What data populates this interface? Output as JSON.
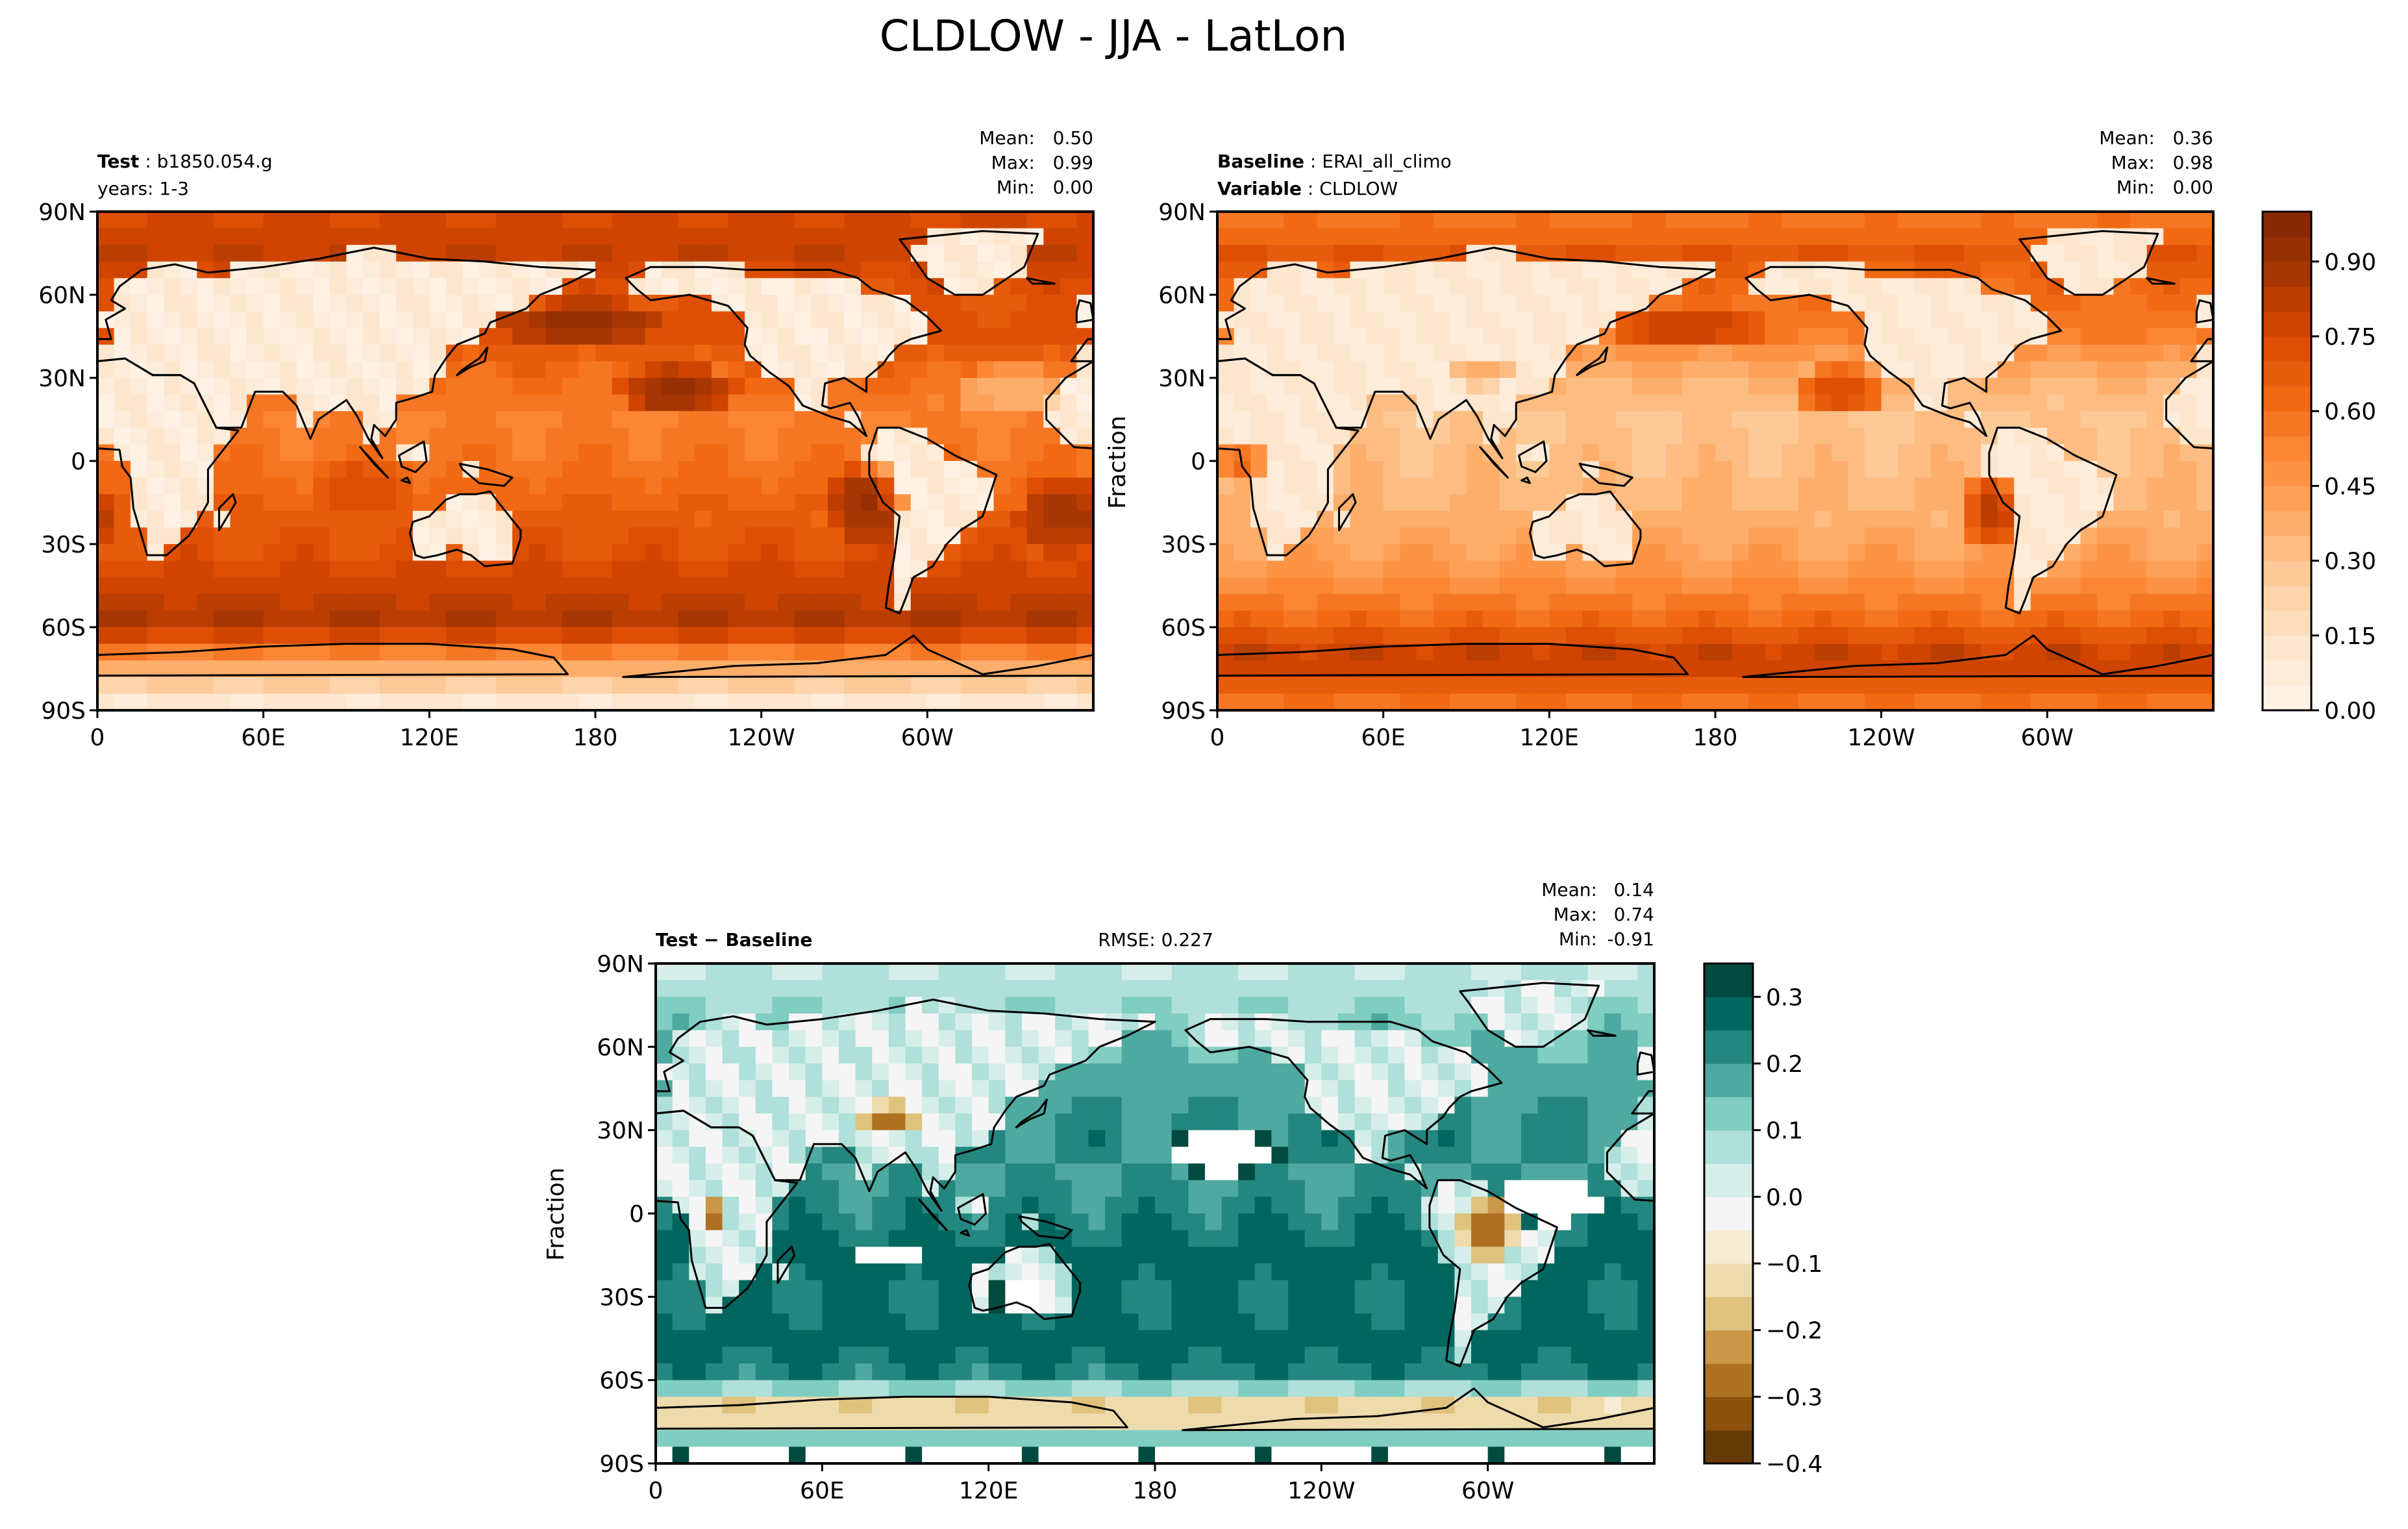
{
  "figure": {
    "title": "CLDLOW - JJA - LatLon"
  },
  "chart_data": [
    {
      "type": "heatmap",
      "panel": "test",
      "label_bold": "Test",
      "label_value": "b1850.054.g",
      "label_line2": "years: 1-3",
      "stats": {
        "mean": "0.50",
        "max": "0.99",
        "min": "0.00"
      },
      "stats_labels": {
        "mean": "Mean:",
        "max": "Max:",
        "min": "Min:"
      },
      "ylabel": "",
      "xticks": [
        "0",
        "60E",
        "120E",
        "180",
        "120W",
        "60W"
      ],
      "yticks": [
        "90N",
        "60N",
        "30N",
        "0",
        "30S",
        "60S",
        "90S"
      ],
      "xlim": [
        0,
        360
      ],
      "ylim": [
        -90,
        90
      ],
      "colormap": "Oranges",
      "field": {
        "zonal_mean_ocean": [
          {
            "lat": 90,
            "value": 0.75
          },
          {
            "lat": 75,
            "value": 0.8
          },
          {
            "lat": 60,
            "value": 0.7
          },
          {
            "lat": 45,
            "value": 0.72
          },
          {
            "lat": 30,
            "value": 0.6
          },
          {
            "lat": 15,
            "value": 0.55
          },
          {
            "lat": 0,
            "value": 0.58
          },
          {
            "lat": -15,
            "value": 0.65
          },
          {
            "lat": -30,
            "value": 0.7
          },
          {
            "lat": -45,
            "value": 0.78
          },
          {
            "lat": -60,
            "value": 0.85
          },
          {
            "lat": -72,
            "value": 0.45
          },
          {
            "lat": -90,
            "value": 0.05
          }
        ],
        "land_value": 0.08,
        "anomalies": [
          {
            "lon": 210,
            "lat": 25,
            "rx": 22,
            "ry": 10,
            "value": 0.92
          },
          {
            "lon": 175,
            "lat": 50,
            "rx": 30,
            "ry": 8,
            "value": 0.92
          },
          {
            "lon": 278,
            "lat": -15,
            "rx": 14,
            "ry": 14,
            "value": 0.92
          },
          {
            "lon": 350,
            "lat": -20,
            "rx": 18,
            "ry": 14,
            "value": 0.88
          },
          {
            "lon": 95,
            "lat": -10,
            "rx": 20,
            "ry": 12,
            "value": 0.72
          },
          {
            "lon": 330,
            "lat": 25,
            "rx": 20,
            "ry": 10,
            "value": 0.35
          }
        ]
      }
    },
    {
      "type": "heatmap",
      "panel": "baseline",
      "label_bold": "Baseline",
      "label_value": "ERAI_all_climo",
      "label2_bold": "Variable",
      "label2_value": "CLDLOW",
      "stats": {
        "mean": "0.36",
        "max": "0.98",
        "min": "0.00"
      },
      "stats_labels": {
        "mean": "Mean:",
        "max": "Max:",
        "min": "Min:"
      },
      "ylabel": "Fraction",
      "xticks": [
        "0",
        "60E",
        "120E",
        "180",
        "120W",
        "60W"
      ],
      "yticks": [
        "90N",
        "60N",
        "30N",
        "0",
        "30S",
        "60S",
        "90S"
      ],
      "xlim": [
        0,
        360
      ],
      "ylim": [
        -90,
        90
      ],
      "colormap": "Oranges",
      "colorbar": {
        "ticks": [
          "0.00",
          "0.15",
          "0.30",
          "0.45",
          "0.60",
          "0.75",
          "0.90"
        ],
        "tick_values": [
          0,
          0.15,
          0.3,
          0.45,
          0.6,
          0.75,
          0.9
        ],
        "range": [
          0,
          1
        ],
        "levels": 20
      },
      "field": {
        "zonal_mean_ocean": [
          {
            "lat": 90,
            "value": 0.55
          },
          {
            "lat": 75,
            "value": 0.7
          },
          {
            "lat": 60,
            "value": 0.6
          },
          {
            "lat": 45,
            "value": 0.55
          },
          {
            "lat": 30,
            "value": 0.35
          },
          {
            "lat": 15,
            "value": 0.3
          },
          {
            "lat": 0,
            "value": 0.32
          },
          {
            "lat": -15,
            "value": 0.35
          },
          {
            "lat": -30,
            "value": 0.4
          },
          {
            "lat": -45,
            "value": 0.5
          },
          {
            "lat": -60,
            "value": 0.65
          },
          {
            "lat": -72,
            "value": 0.82
          },
          {
            "lat": -90,
            "value": 0.55
          }
        ],
        "land_value": 0.1,
        "anomalies": [
          {
            "lon": 225,
            "lat": 25,
            "rx": 18,
            "ry": 10,
            "value": 0.75
          },
          {
            "lon": 170,
            "lat": 48,
            "rx": 28,
            "ry": 8,
            "value": 0.8
          },
          {
            "lon": 280,
            "lat": -18,
            "rx": 10,
            "ry": 14,
            "value": 0.85
          },
          {
            "lon": 10,
            "lat": 0,
            "rx": 10,
            "ry": 6,
            "value": 0.65
          },
          {
            "lon": 95,
            "lat": 32,
            "rx": 14,
            "ry": 6,
            "value": 0.4
          }
        ]
      }
    },
    {
      "type": "heatmap",
      "panel": "difference",
      "label_bold": "Test − Baseline",
      "rmse_label": "RMSE: 0.227",
      "stats": {
        "mean": "0.14",
        "max": "0.74",
        "min": "-0.91"
      },
      "stats_labels": {
        "mean": "Mean:",
        "max": "Max:",
        "min": "Min:"
      },
      "ylabel": "Fraction",
      "xticks": [
        "0",
        "60E",
        "120E",
        "180",
        "120W",
        "60W"
      ],
      "yticks": [
        "90N",
        "60N",
        "30N",
        "0",
        "30S",
        "60S",
        "90S"
      ],
      "xlim": [
        0,
        360
      ],
      "ylim": [
        -90,
        90
      ],
      "colormap": "BrBG",
      "colorbar": {
        "ticks": [
          "0.3",
          "0.2",
          "0.1",
          "0.0",
          "−0.1",
          "−0.2",
          "−0.3",
          "−0.4"
        ],
        "tick_values": [
          0.3,
          0.2,
          0.1,
          0.0,
          -0.1,
          -0.2,
          -0.3,
          -0.4
        ],
        "range": [
          -0.4,
          0.35
        ],
        "levels": 15
      },
      "field": {
        "zonal_mean_ocean": [
          {
            "lat": 90,
            "value": 0.05
          },
          {
            "lat": 75,
            "value": 0.1
          },
          {
            "lat": 60,
            "value": 0.15
          },
          {
            "lat": 45,
            "value": 0.18
          },
          {
            "lat": 30,
            "value": 0.22
          },
          {
            "lat": 15,
            "value": 0.2
          },
          {
            "lat": 0,
            "value": 0.22
          },
          {
            "lat": -15,
            "value": 0.28
          },
          {
            "lat": -30,
            "value": 0.25
          },
          {
            "lat": -45,
            "value": 0.28
          },
          {
            "lat": -60,
            "value": 0.22
          },
          {
            "lat": -72,
            "value": -0.25
          },
          {
            "lat": -90,
            "value": 0.5
          }
        ],
        "land_value": 0.02,
        "anomalies": [
          {
            "lon": 205,
            "lat": 22,
            "rx": 22,
            "ry": 8,
            "value": 0.5
          },
          {
            "lon": 322,
            "lat": 5,
            "rx": 18,
            "ry": 10,
            "value": 0.5
          },
          {
            "lon": 85,
            "lat": -15,
            "rx": 14,
            "ry": 6,
            "value": 0.5
          },
          {
            "lon": 130,
            "lat": -30,
            "rx": 12,
            "ry": 6,
            "value": 0.5
          },
          {
            "lon": 300,
            "lat": -5,
            "rx": 10,
            "ry": 12,
            "value": -0.32
          },
          {
            "lon": 20,
            "lat": 0,
            "rx": 5,
            "ry": 4,
            "value": -0.4
          },
          {
            "lon": 85,
            "lat": 35,
            "rx": 12,
            "ry": 5,
            "value": -0.3
          },
          {
            "lon": 305,
            "lat": 78,
            "rx": 4,
            "ry": 3,
            "value": -0.4
          }
        ]
      }
    }
  ]
}
